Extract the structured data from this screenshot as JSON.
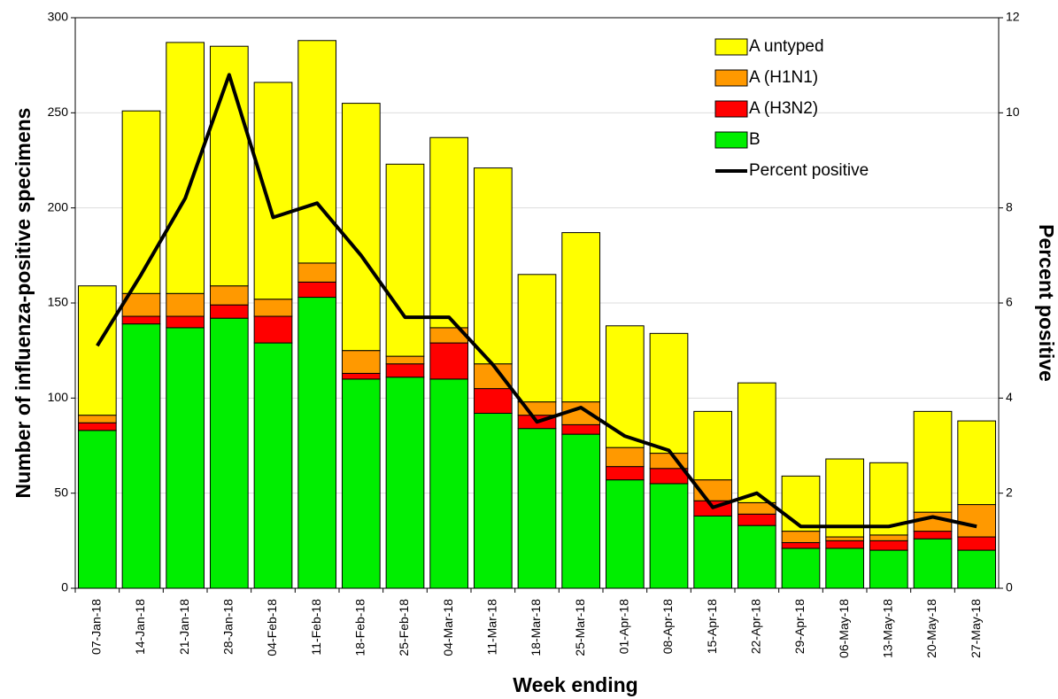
{
  "chart_data": {
    "type": "bar",
    "stacked": true,
    "x_label": "Week ending",
    "y_label": "Number of influenza-positive specimens",
    "y2_label": "Percent positive",
    "categories": [
      "07-Jan-18",
      "14-Jan-18",
      "21-Jan-18",
      "28-Jan-18",
      "04-Feb-18",
      "11-Feb-18",
      "18-Feb-18",
      "25-Feb-18",
      "04-Mar-18",
      "11-Mar-18",
      "18-Mar-18",
      "25-Mar-18",
      "01-Apr-18",
      "08-Apr-18",
      "15-Apr-18",
      "22-Apr-18",
      "29-Apr-18",
      "06-May-18",
      "13-May-18",
      "20-May-18",
      "27-May-18"
    ],
    "series": [
      {
        "name": "A untyped",
        "color": "#ffff00",
        "values": [
          68,
          96,
          132,
          126,
          114,
          117,
          130,
          101,
          100,
          103,
          67,
          89,
          64,
          63,
          36,
          63,
          29,
          41,
          38,
          53,
          44
        ]
      },
      {
        "name": "A (H1N1)",
        "color": "#ff9900",
        "values": [
          4,
          12,
          12,
          10,
          9,
          10,
          12,
          4,
          8,
          13,
          7,
          12,
          10,
          8,
          11,
          6,
          6,
          2,
          3,
          10,
          17
        ]
      },
      {
        "name": "A (H3N2)",
        "color": "#ff0000",
        "values": [
          4,
          4,
          6,
          7,
          14,
          8,
          3,
          7,
          19,
          13,
          7,
          5,
          7,
          8,
          8,
          6,
          3,
          4,
          5,
          4,
          7
        ]
      },
      {
        "name": "B",
        "color": "#00ee00",
        "values": [
          83,
          139,
          137,
          142,
          129,
          153,
          110,
          111,
          110,
          92,
          84,
          81,
          57,
          55,
          38,
          33,
          21,
          21,
          20,
          26,
          20
        ]
      },
      {
        "name": "Percent positive",
        "type": "line",
        "axis": "y2",
        "color": "#000000",
        "values": [
          5.1,
          6.6,
          8.2,
          10.8,
          7.8,
          8.1,
          7.0,
          5.7,
          5.7,
          4.7,
          3.5,
          3.8,
          3.2,
          2.9,
          1.7,
          2.0,
          1.3,
          1.3,
          1.3,
          1.5,
          1.3
        ]
      }
    ],
    "ylim": [
      0,
      300
    ],
    "yticks": [
      0,
      50,
      100,
      150,
      200,
      250,
      300
    ],
    "y2lim": [
      0,
      12
    ],
    "y2ticks": [
      0,
      2,
      4,
      6,
      8,
      10,
      12
    ],
    "grid": true,
    "legend": "top-right"
  }
}
